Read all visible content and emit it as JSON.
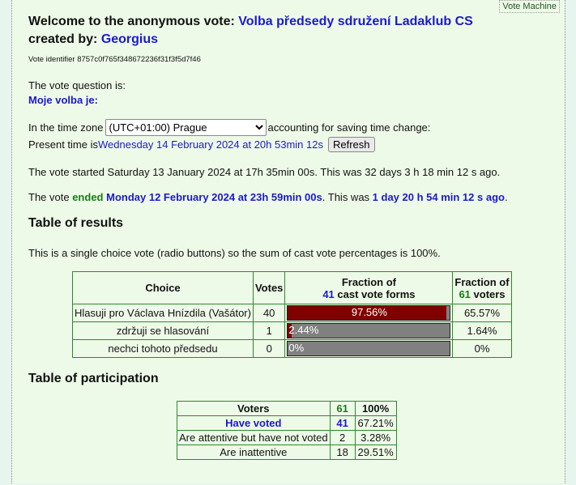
{
  "vote_machine": "Vote Machine",
  "welcome": "Welcome to the anonymous vote: ",
  "vote_title": "Volba předsedy sdružení Ladaklub CS",
  "created_by": "created by: ",
  "creator": "Georgius",
  "identifier": "Vote identifier 8757c0f765f348672236f31f3f5d7f46",
  "question_label": "The vote question is:",
  "question": "Moje volba je:",
  "tz_prefix": "In the time zone",
  "tz_value": "(UTC+01:00) Prague",
  "tz_suffix": "accounting for saving time change:",
  "present_prefix": "Present time is ",
  "present_time": "Wednesday 14 February 2024 at 20h 53min 12s",
  "refresh": "Refresh",
  "started": "The vote started Saturday 13 January 2024 at 17h 35min 00s. This was 32 days 3 h 18 min 12 s ago.",
  "ended_prefix": "The vote ",
  "ended_word": "ended",
  "ended_time": "Monday 12 February 2024 at 23h 59min 00s",
  "ended_mid": ". This was ",
  "ended_ago": "1 day 20 h 54 min 12 s ago",
  "ended_end": ".",
  "results_title": "Table of results",
  "results_note": "This is a single choice vote (radio buttons) so the sum of cast vote percentages is 100%.",
  "results": {
    "h_choice": "Choice",
    "h_votes": "Votes",
    "h_frac1": "Fraction of",
    "h_cast_n": "41",
    "h_cast": " cast vote forms",
    "h_frac2": "Fraction of",
    "h_voters_n": "61",
    "h_voters": " voters",
    "rows": [
      {
        "choice": "Hlasuji pro Václava Hnízdila (Vašátor)",
        "votes": "40",
        "pct": "97.56%",
        "fraction": 97.56,
        "voters_pct": "65.57%"
      },
      {
        "choice": "zdržuji se hlasování",
        "votes": "1",
        "pct": "2.44%",
        "fraction": 2.44,
        "voters_pct": "1.64%"
      },
      {
        "choice": "nechci tohoto předsedu",
        "votes": "0",
        "pct": "0%",
        "fraction": 0,
        "voters_pct": "0%"
      }
    ]
  },
  "participation_title": "Table of participation",
  "participation": {
    "h_voters": "Voters",
    "h_n": "61",
    "h_pct": "100%",
    "rows": [
      {
        "label": "Have voted",
        "n": "41",
        "pct": "67.21%"
      },
      {
        "label": "Are attentive but have not voted",
        "n": "2",
        "pct": "3.28%"
      },
      {
        "label": "Are inattentive",
        "n": "18",
        "pct": "29.51%"
      }
    ]
  },
  "colors": {
    "bar_fill": "#800000",
    "bar_bg": "#808080",
    "link": "#1a1acc",
    "green": "#1a7a1a"
  }
}
